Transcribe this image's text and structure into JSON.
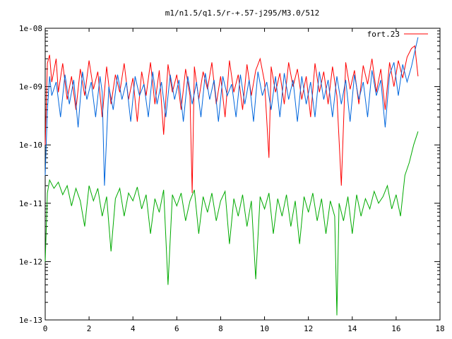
{
  "chart_data": {
    "type": "line",
    "title": "m1/n1.5/q1.5/r-+.57-j295/M3.0/512",
    "xlabel": "",
    "ylabel": "",
    "xlim": [
      0,
      18
    ],
    "ylim": [
      1e-13,
      1e-08
    ],
    "yscale": "log",
    "grid": false,
    "legend_position": "top-right",
    "x_ticks": [
      0,
      2,
      4,
      6,
      8,
      10,
      12,
      14,
      16,
      18
    ],
    "x_tick_labels": [
      "0",
      "2",
      "4",
      "6",
      "8",
      "10",
      "12",
      "14",
      "16",
      "18"
    ],
    "y_ticks": [
      1e-13,
      1e-12,
      1e-11,
      1e-10,
      1e-09,
      1e-08
    ],
    "y_tick_labels": [
      "1e-13",
      "1e-12",
      "1e-11",
      "1e-10",
      "1e-09",
      "1e-08"
    ],
    "series": [
      {
        "name": "fort.23",
        "color": "#ff0000",
        "x": [
          0.0,
          0.1,
          0.2,
          0.3,
          0.5,
          0.6,
          0.8,
          1.0,
          1.2,
          1.4,
          1.6,
          1.8,
          2.0,
          2.2,
          2.4,
          2.6,
          2.8,
          3.0,
          3.2,
          3.4,
          3.6,
          3.8,
          4.0,
          4.2,
          4.4,
          4.6,
          4.8,
          5.0,
          5.2,
          5.4,
          5.6,
          5.8,
          6.0,
          6.2,
          6.4,
          6.6,
          6.7,
          6.8,
          7.0,
          7.2,
          7.4,
          7.6,
          7.8,
          8.0,
          8.2,
          8.4,
          8.6,
          8.8,
          9.0,
          9.2,
          9.4,
          9.6,
          9.8,
          10.0,
          10.2,
          10.3,
          10.5,
          10.7,
          10.9,
          11.1,
          11.3,
          11.5,
          11.7,
          11.9,
          12.1,
          12.3,
          12.5,
          12.7,
          12.9,
          13.1,
          13.3,
          13.5,
          13.7,
          13.9,
          14.1,
          14.3,
          14.5,
          14.7,
          14.9,
          15.1,
          15.3,
          15.5,
          15.7,
          15.9,
          16.1,
          16.3,
          16.5,
          16.7,
          16.85,
          17.0
        ],
        "y": [
          1e-10,
          2.5e-09,
          3.5e-09,
          1.2e-09,
          3e-09,
          8e-10,
          2.5e-09,
          6e-10,
          1.5e-09,
          4e-10,
          2e-09,
          7e-10,
          2.8e-09,
          9e-10,
          1.8e-09,
          3e-10,
          2.2e-09,
          5e-10,
          1.6e-09,
          8e-10,
          2.5e-09,
          6e-10,
          1.4e-09,
          2.5e-10,
          1.8e-09,
          7e-10,
          2.6e-09,
          5e-10,
          1.9e-09,
          1.5e-10,
          2.4e-09,
          8e-10,
          1.6e-09,
          4e-10,
          2e-09,
          7e-10,
          1.5e-11,
          2.2e-09,
          6e-10,
          1.8e-09,
          9e-10,
          2.6e-09,
          5e-10,
          1.5e-09,
          3e-10,
          2.8e-09,
          8e-10,
          1.6e-09,
          4e-10,
          2.4e-09,
          7e-10,
          1.9e-09,
          3e-09,
          1.2e-09,
          6e-11,
          2.2e-09,
          8e-10,
          1.7e-09,
          5e-10,
          2.6e-09,
          1e-09,
          2e-09,
          6e-10,
          1.5e-09,
          3e-10,
          2.5e-09,
          8e-10,
          1.8e-09,
          5e-10,
          2.2e-09,
          7e-10,
          2e-11,
          2.6e-09,
          9e-10,
          1.9e-09,
          5e-10,
          2.3e-09,
          1.1e-09,
          3e-09,
          8e-10,
          2e-09,
          4e-10,
          2.6e-09,
          1e-09,
          2.8e-09,
          1.4e-09,
          3.2e-09,
          4.5e-09,
          5e-09,
          1.5e-09
        ]
      },
      {
        "name": "",
        "color": "#0066dd",
        "x": [
          0.0,
          0.1,
          0.2,
          0.3,
          0.5,
          0.7,
          0.9,
          1.1,
          1.3,
          1.5,
          1.7,
          1.9,
          2.1,
          2.3,
          2.5,
          2.6,
          2.7,
          2.9,
          3.1,
          3.3,
          3.5,
          3.7,
          3.9,
          4.1,
          4.3,
          4.5,
          4.7,
          4.9,
          5.1,
          5.3,
          5.5,
          5.7,
          5.9,
          6.1,
          6.3,
          6.5,
          6.7,
          6.9,
          7.1,
          7.3,
          7.5,
          7.7,
          7.9,
          8.1,
          8.3,
          8.5,
          8.7,
          8.9,
          9.1,
          9.3,
          9.5,
          9.7,
          9.9,
          10.1,
          10.3,
          10.5,
          10.7,
          10.9,
          11.1,
          11.3,
          11.5,
          11.7,
          11.9,
          12.1,
          12.3,
          12.5,
          12.7,
          12.9,
          13.1,
          13.3,
          13.5,
          13.7,
          13.9,
          14.1,
          14.3,
          14.5,
          14.7,
          14.9,
          15.1,
          15.3,
          15.5,
          15.7,
          15.9,
          16.1,
          16.3,
          16.5,
          16.7,
          16.85,
          17.0
        ],
        "y": [
          3e-11,
          4e-10,
          1.5e-09,
          7e-10,
          1.2e-09,
          3e-10,
          1.6e-09,
          5e-10,
          1.3e-09,
          2e-10,
          1.8e-09,
          6e-10,
          1.2e-09,
          3e-10,
          1.5e-09,
          8e-10,
          2e-11,
          1e-09,
          4e-10,
          1.6e-09,
          6e-10,
          1.2e-09,
          2.5e-10,
          1.5e-09,
          7e-10,
          1.1e-09,
          3e-10,
          1.8e-09,
          5e-10,
          1.2e-09,
          3e-10,
          1.6e-09,
          6e-10,
          1.3e-09,
          2.5e-10,
          1.5e-09,
          5e-10,
          1.2e-09,
          3e-10,
          1.7e-09,
          6e-10,
          1.3e-09,
          2.5e-10,
          1.5e-09,
          7e-10,
          1.1e-09,
          3e-10,
          1.6e-09,
          5e-10,
          1.3e-09,
          2.5e-10,
          1.8e-09,
          7e-10,
          1.2e-09,
          4e-10,
          1.5e-09,
          3e-10,
          1.7e-09,
          6e-10,
          1.3e-09,
          2.5e-10,
          1.5e-09,
          5e-10,
          1.2e-09,
          3e-10,
          1.8e-09,
          6e-10,
          1.3e-09,
          3e-10,
          1.5e-09,
          5e-10,
          1.3e-09,
          2.5e-10,
          1.6e-09,
          6e-10,
          1.2e-09,
          3e-10,
          1.9e-09,
          7e-10,
          1.3e-09,
          2e-10,
          1.6e-09,
          2.6e-09,
          7e-10,
          2.4e-09,
          1.2e-09,
          2.2e-09,
          4e-09,
          7e-09
        ]
      },
      {
        "name": "",
        "color": "#00aa00",
        "x": [
          0.0,
          0.1,
          0.2,
          0.4,
          0.6,
          0.8,
          1.0,
          1.2,
          1.4,
          1.6,
          1.8,
          2.0,
          2.2,
          2.4,
          2.6,
          2.8,
          3.0,
          3.2,
          3.4,
          3.6,
          3.8,
          4.0,
          4.2,
          4.4,
          4.6,
          4.8,
          5.0,
          5.2,
          5.4,
          5.6,
          5.8,
          6.0,
          6.2,
          6.4,
          6.6,
          6.8,
          7.0,
          7.2,
          7.4,
          7.6,
          7.8,
          8.0,
          8.2,
          8.4,
          8.6,
          8.8,
          9.0,
          9.2,
          9.4,
          9.6,
          9.8,
          10.0,
          10.2,
          10.4,
          10.6,
          10.8,
          11.0,
          11.2,
          11.4,
          11.6,
          11.8,
          12.0,
          12.2,
          12.4,
          12.6,
          12.8,
          13.0,
          13.2,
          13.3,
          13.4,
          13.6,
          13.8,
          14.0,
          14.2,
          14.4,
          14.6,
          14.8,
          15.0,
          15.2,
          15.4,
          15.6,
          15.8,
          16.0,
          16.2,
          16.4,
          16.6,
          16.8,
          17.0
        ],
        "y": [
          1e-12,
          1.5e-11,
          2.5e-11,
          1.8e-11,
          2.3e-11,
          1.4e-11,
          2e-11,
          9e-12,
          1.8e-11,
          1.1e-11,
          4e-12,
          2e-11,
          1.1e-11,
          1.8e-11,
          6e-12,
          1.3e-11,
          1.5e-12,
          1.2e-11,
          1.8e-11,
          6e-12,
          1.5e-11,
          1.1e-11,
          1.9e-11,
          8e-12,
          1.4e-11,
          3e-12,
          1.2e-11,
          7e-12,
          1.7e-11,
          4e-13,
          1.4e-11,
          9e-12,
          1.5e-11,
          5e-12,
          1.1e-11,
          1.7e-11,
          3e-12,
          1.3e-11,
          7e-12,
          1.5e-11,
          5e-12,
          1.1e-11,
          1.6e-11,
          2e-12,
          1.2e-11,
          6e-12,
          1.4e-11,
          4e-12,
          1.1e-11,
          5e-13,
          1.3e-11,
          8e-12,
          1.5e-11,
          3e-12,
          1.2e-11,
          6e-12,
          1.4e-11,
          4e-12,
          1.1e-11,
          2e-12,
          1.3e-11,
          7e-12,
          1.5e-11,
          5e-12,
          1.2e-11,
          3e-12,
          1.1e-11,
          6e-12,
          1.2e-13,
          1e-11,
          5e-12,
          1.3e-11,
          3e-12,
          1.4e-11,
          6e-12,
          1.2e-11,
          8e-12,
          1.6e-11,
          1e-11,
          1.3e-11,
          2e-11,
          8e-12,
          1.4e-11,
          6e-12,
          3e-11,
          5e-11,
          1e-10,
          1.7e-10
        ]
      }
    ]
  }
}
